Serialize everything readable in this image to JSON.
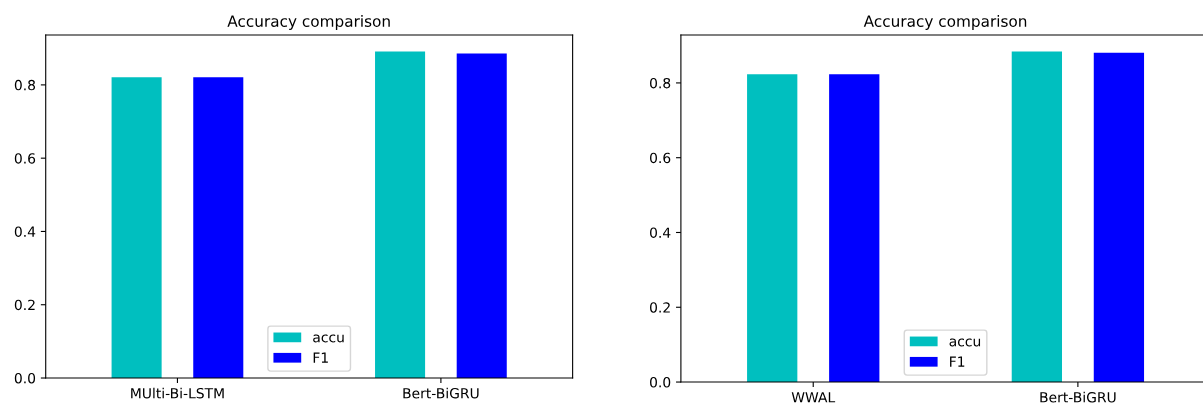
{
  "chart_data": [
    {
      "type": "bar",
      "title": "Accuracy comparison",
      "categories": [
        "MUlti-Bi-LSTM",
        "Bert-BiGRU"
      ],
      "series": [
        {
          "name": "accu",
          "color": "#00bfbf",
          "values": [
            0.821,
            0.891
          ]
        },
        {
          "name": "F1",
          "color": "#0000ff",
          "values": [
            0.821,
            0.886
          ]
        }
      ],
      "ylim": [
        0,
        0.936
      ],
      "yticks": [
        {
          "value": 0,
          "label": "0.0"
        },
        0.2,
        0.4,
        0.6,
        0.8
      ],
      "legend": "bottom",
      "grid": false
    },
    {
      "type": "bar",
      "title": "Accuracy comparison",
      "categories": [
        "WWAL",
        "Bert-BiGRU"
      ],
      "series": [
        {
          "name": "accu",
          "color": "#00bfbf",
          "values": [
            0.823,
            0.884
          ]
        },
        {
          "name": "F1",
          "color": "#0000ff",
          "values": [
            0.823,
            0.881
          ]
        }
      ],
      "ylim": [
        0,
        0.928
      ],
      "yticks": [
        {
          "value": 0,
          "label": "0.0"
        },
        0.2,
        0.4,
        0.6,
        0.8
      ],
      "legend": "bottom",
      "grid": false
    }
  ]
}
